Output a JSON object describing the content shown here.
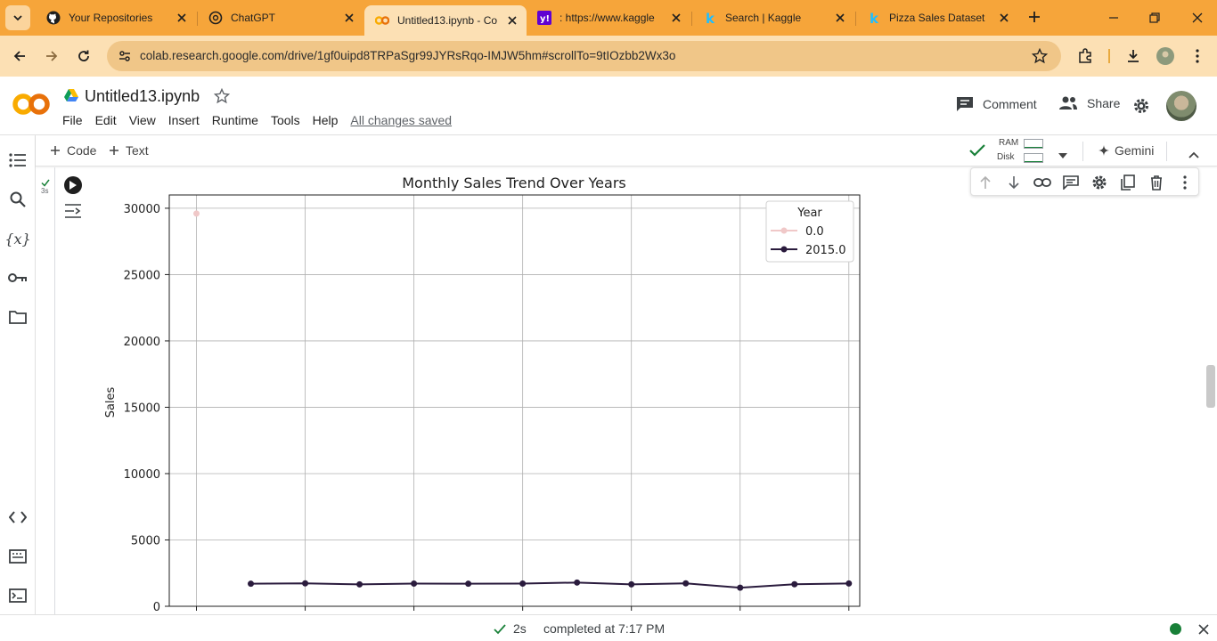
{
  "browser": {
    "tabs": [
      {
        "title": "Your Repositories",
        "icon": "github-icon"
      },
      {
        "title": "ChatGPT",
        "icon": "chatgpt-icon"
      },
      {
        "title": "Untitled13.ipynb - Co",
        "icon": "colab-icon",
        "active": true
      },
      {
        "title": ": https://www.kaggle",
        "icon": "yahoo-icon"
      },
      {
        "title": "Search | Kaggle",
        "icon": "kaggle-icon"
      },
      {
        "title": "Pizza Sales Dataset",
        "icon": "kaggle-icon"
      }
    ],
    "url": "colab.research.google.com/drive/1gf0uipd8TRPaSgr99JYRsRqo-IMJW5hm#scrollTo=9tIOzbb2Wx3o",
    "colors": {
      "tabstrip": "#f6a53a",
      "toolbar": "#fce0b4",
      "omnibox": "#f0c688"
    }
  },
  "colab": {
    "doc_title": "Untitled13.ipynb",
    "menu": [
      "File",
      "Edit",
      "View",
      "Insert",
      "Runtime",
      "Tools",
      "Help"
    ],
    "saved_status": "All changes saved",
    "comment_label": "Comment",
    "share_label": "Share",
    "add_code_label": "Code",
    "add_text_label": "Text",
    "ram_label": "RAM",
    "disk_label": "Disk",
    "gemini_label": "Gemini",
    "cell_exec_time": "3s"
  },
  "status": {
    "elapsed": "2s",
    "message": "completed at 7:17 PM"
  },
  "chart_data": {
    "type": "line",
    "title": "Monthly Sales Trend Over Years",
    "xlabel": "",
    "ylabel": "Sales",
    "ylim": [
      0,
      31000
    ],
    "yticks": [
      0,
      5000,
      10000,
      15000,
      20000,
      25000,
      30000
    ],
    "xlim": [
      0.5,
      13.2
    ],
    "xticks": [
      1,
      3,
      5,
      7,
      9,
      11,
      13
    ],
    "grid": true,
    "legend": {
      "title": "Year",
      "placement": "top-right"
    },
    "series": [
      {
        "name": "0.0",
        "color": "#f0c8c8",
        "x": [
          1
        ],
        "values": [
          29600
        ]
      },
      {
        "name": "2015.0",
        "color": "#2a1b3d",
        "x": [
          2,
          3,
          4,
          5,
          6,
          7,
          8,
          9,
          10,
          11,
          12,
          13
        ],
        "values": [
          1700,
          1730,
          1650,
          1710,
          1700,
          1710,
          1790,
          1650,
          1730,
          1400,
          1660,
          1720
        ]
      }
    ]
  }
}
